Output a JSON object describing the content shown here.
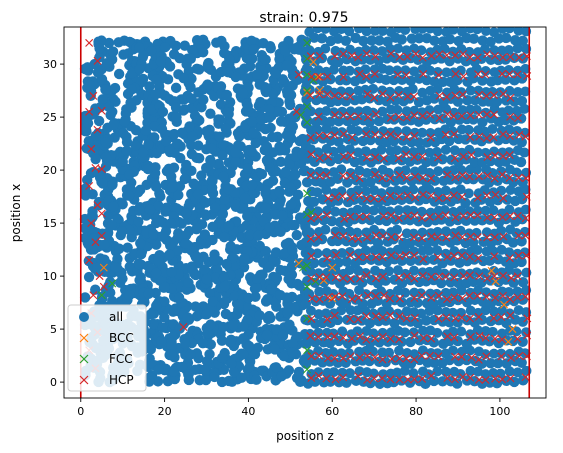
{
  "chart_data": {
    "type": "scatter",
    "title": "strain: 0.975",
    "xlabel": "position z",
    "ylabel": "position x",
    "xlim": [
      -4,
      111
    ],
    "ylim": [
      -1.5,
      33.5
    ],
    "xticks": [
      0,
      20,
      40,
      60,
      80,
      100
    ],
    "yticks": [
      0,
      5,
      10,
      15,
      20,
      25,
      30
    ],
    "grid": false,
    "legend_position": "lower-left",
    "vertical_lines": [
      {
        "x": 0,
        "color": "#cc0000"
      },
      {
        "x": 107,
        "color": "#cc0000"
      }
    ],
    "series": [
      {
        "name": "all",
        "marker": "o",
        "color": "#1f77b4",
        "region_disordered": {
          "x_range": [
            1,
            54
          ],
          "y_range": [
            0,
            32.3
          ]
        },
        "region_lattice": {
          "x_range": [
            54,
            106.5
          ],
          "y_range": [
            0,
            32.3
          ],
          "x_spacing": 1.9,
          "y_spacing": 1.9
        }
      },
      {
        "name": "BCC",
        "marker": "x",
        "color": "#ff7f0e",
        "points": [
          [
            5.5,
            10.8
          ],
          [
            54.0,
            27.3
          ],
          [
            56.5,
            28.8
          ],
          [
            57.0,
            27.5
          ],
          [
            60.0,
            10.8
          ],
          [
            60.0,
            7.9
          ],
          [
            98.0,
            10.5
          ],
          [
            99.0,
            9.5
          ],
          [
            101.0,
            7.3
          ],
          [
            102.0,
            3.8
          ],
          [
            103.0,
            5.0
          ],
          [
            52.0,
            11.2
          ],
          [
            55.5,
            30.2
          ],
          [
            58.0,
            9.6
          ]
        ]
      },
      {
        "name": "FCC",
        "marker": "x",
        "color": "#2ca02c",
        "points": [
          [
            54.0,
            32.0
          ],
          [
            54.0,
            30.5
          ],
          [
            54.0,
            29.0
          ],
          [
            54.0,
            27.5
          ],
          [
            54.0,
            26.0
          ],
          [
            54.0,
            24.5
          ],
          [
            54.0,
            17.8
          ],
          [
            54.0,
            15.8
          ],
          [
            54.0,
            11.0
          ],
          [
            54.0,
            9.0
          ],
          [
            54.0,
            6.0
          ],
          [
            54.0,
            3.0
          ],
          [
            54.0,
            1.2
          ],
          [
            53.0,
            10.8
          ],
          [
            55.5,
            28.5
          ],
          [
            7.5,
            9.3
          ],
          [
            5.0,
            8.2
          ],
          [
            52.5,
            25.2
          ],
          [
            55.0,
            16.0
          ],
          [
            56.0,
            9.5
          ]
        ]
      },
      {
        "name": "HCP",
        "marker": "x",
        "color": "#d62728",
        "points_rule": "lattice_and_edge",
        "extra_points": [
          [
            24.5,
            5.2
          ],
          [
            2.0,
            32.0
          ],
          [
            4.0,
            30.3
          ],
          [
            3.0,
            27.0
          ],
          [
            2.0,
            25.5
          ],
          [
            4.0,
            23.8
          ],
          [
            2.5,
            22.0
          ],
          [
            3.5,
            20.2
          ],
          [
            2.0,
            18.5
          ],
          [
            4.0,
            16.7
          ],
          [
            2.5,
            15.0
          ],
          [
            3.5,
            13.2
          ],
          [
            2.0,
            11.5
          ],
          [
            4.5,
            10.0
          ],
          [
            3.0,
            8.2
          ],
          [
            2.5,
            6.5
          ],
          [
            4.0,
            4.7
          ],
          [
            2.0,
            3.0
          ],
          [
            3.5,
            1.3
          ],
          [
            5.0,
            25.6
          ],
          [
            5.0,
            20.1
          ],
          [
            5.0,
            15.9
          ],
          [
            5.0,
            13.8
          ],
          [
            5.5,
            9.0
          ],
          [
            52.0,
            29.0
          ],
          [
            51.5,
            25.5
          ]
        ]
      }
    ]
  }
}
